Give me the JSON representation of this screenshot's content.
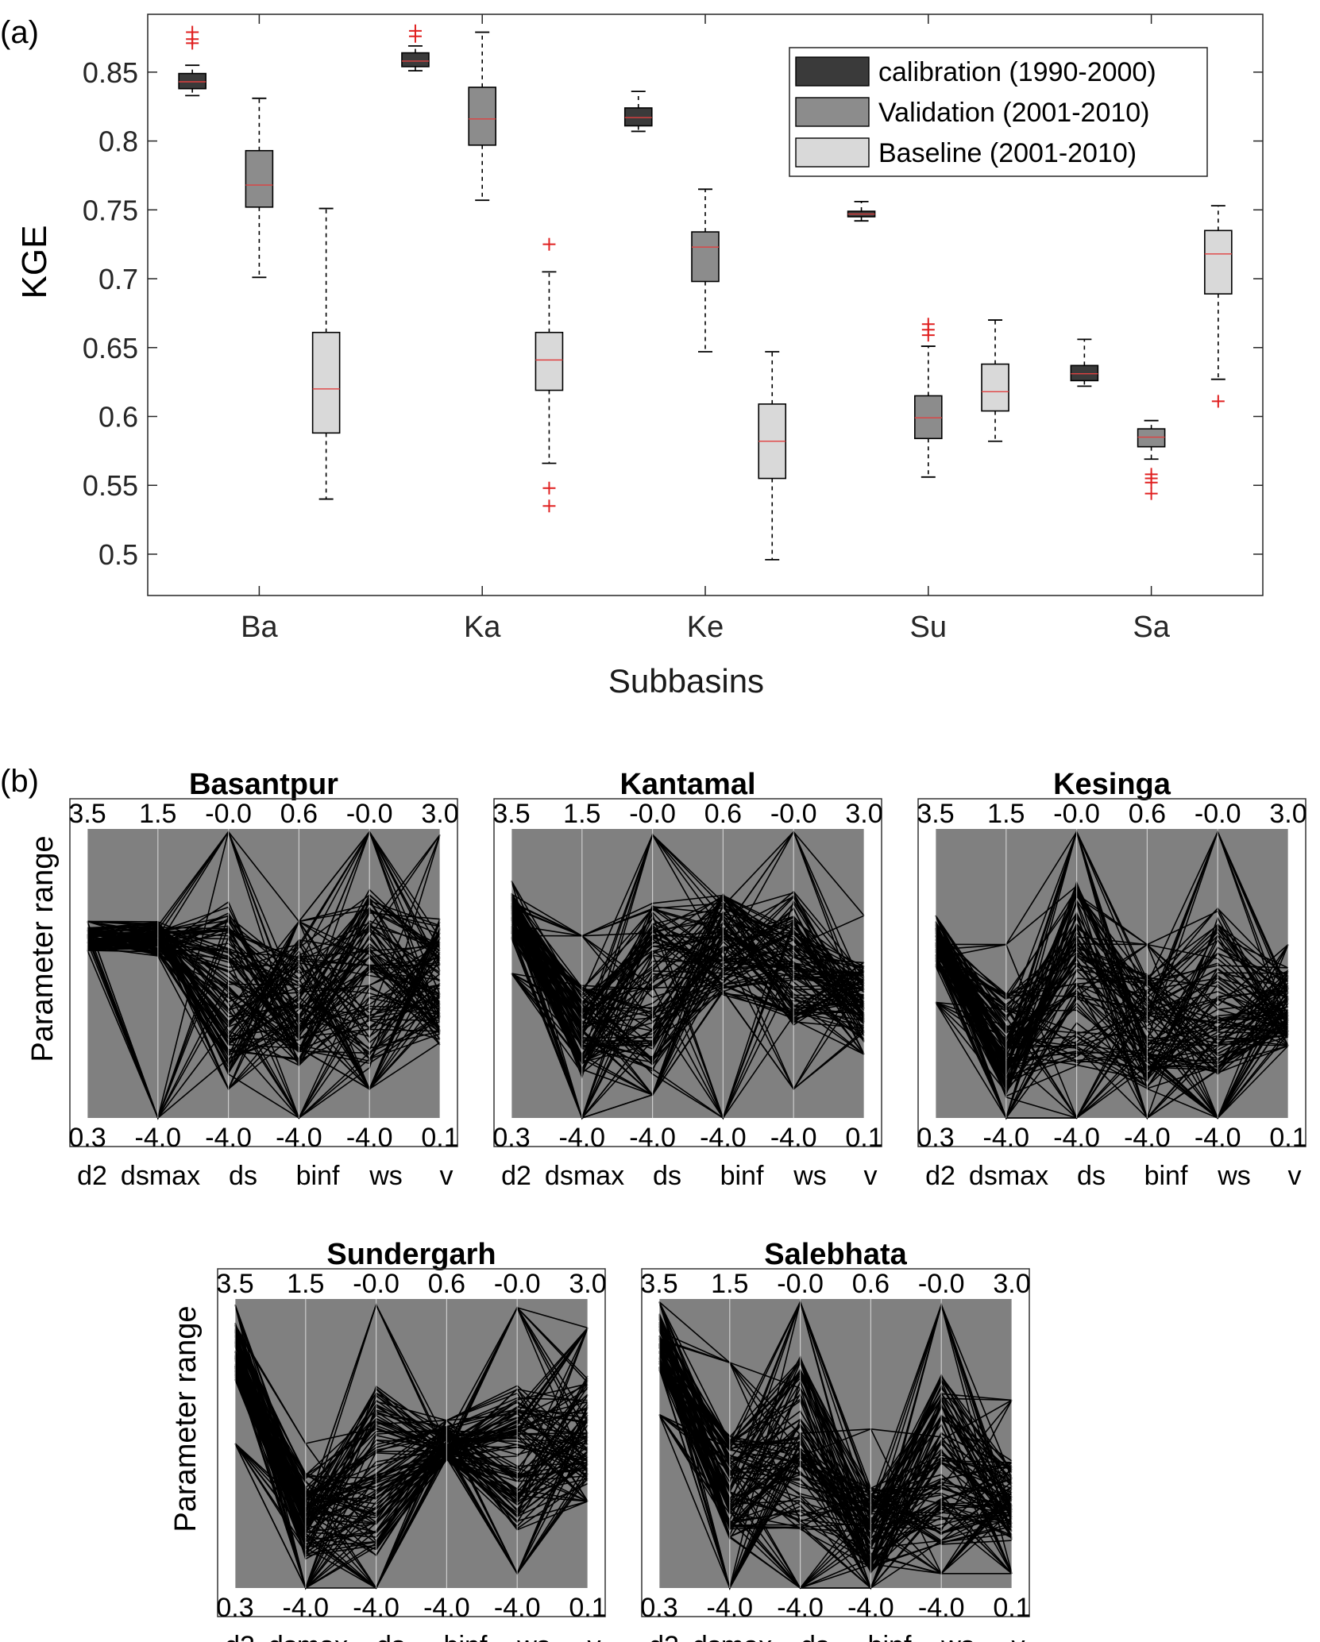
{
  "panel_labels": {
    "a": "(a)",
    "b": "(b)"
  },
  "chart_data": [
    {
      "type": "box",
      "title": "",
      "xlabel": "Subbasins",
      "ylabel": "KGE",
      "ylim": [
        0.47,
        0.892
      ],
      "yticks": [
        0.5,
        0.55,
        0.6,
        0.65,
        0.7,
        0.75,
        0.8,
        0.85
      ],
      "ytick_labels": [
        "0.5",
        "0.55",
        "0.6",
        "0.65",
        "0.7",
        "0.75",
        "0.8",
        "0.85"
      ],
      "categories": [
        "Ba",
        "Ka",
        "Ke",
        "Su",
        "Sa"
      ],
      "legend_position": "top-right",
      "grid": false,
      "series": [
        {
          "name": "calibration (1990-2000)",
          "color": "#3a3a3a",
          "boxes": [
            {
              "whisker_low": 0.833,
              "q1": 0.838,
              "median": 0.843,
              "q3": 0.849,
              "whisker_high": 0.855,
              "outliers": [
                0.871,
                0.874,
                0.879
              ]
            },
            {
              "whisker_low": 0.851,
              "q1": 0.854,
              "median": 0.858,
              "q3": 0.864,
              "whisker_high": 0.869,
              "outliers": [
                0.876,
                0.88
              ]
            },
            {
              "whisker_low": 0.807,
              "q1": 0.811,
              "median": 0.817,
              "q3": 0.824,
              "whisker_high": 0.836,
              "outliers": []
            },
            {
              "whisker_low": 0.742,
              "q1": 0.745,
              "median": 0.747,
              "q3": 0.749,
              "whisker_high": 0.756,
              "outliers": []
            },
            {
              "whisker_low": 0.622,
              "q1": 0.626,
              "median": 0.631,
              "q3": 0.637,
              "whisker_high": 0.656,
              "outliers": []
            }
          ]
        },
        {
          "name": "Validation (2001-2010)",
          "color": "#8c8c8c",
          "boxes": [
            {
              "whisker_low": 0.701,
              "q1": 0.752,
              "median": 0.768,
              "q3": 0.793,
              "whisker_high": 0.831,
              "outliers": []
            },
            {
              "whisker_low": 0.757,
              "q1": 0.797,
              "median": 0.816,
              "q3": 0.839,
              "whisker_high": 0.879,
              "outliers": []
            },
            {
              "whisker_low": 0.647,
              "q1": 0.698,
              "median": 0.723,
              "q3": 0.734,
              "whisker_high": 0.765,
              "outliers": []
            },
            {
              "whisker_low": 0.556,
              "q1": 0.584,
              "median": 0.599,
              "q3": 0.615,
              "whisker_high": 0.651,
              "outliers": [
                0.659,
                0.663,
                0.667
              ]
            },
            {
              "whisker_low": 0.569,
              "q1": 0.578,
              "median": 0.585,
              "q3": 0.591,
              "whisker_high": 0.597,
              "outliers": [
                0.544,
                0.552,
                0.555,
                0.558
              ]
            }
          ]
        },
        {
          "name": "Baseline (2001-2010)",
          "color": "#d9d9d9",
          "boxes": [
            {
              "whisker_low": 0.54,
              "q1": 0.588,
              "median": 0.62,
              "q3": 0.661,
              "whisker_high": 0.751,
              "outliers": []
            },
            {
              "whisker_low": 0.566,
              "q1": 0.619,
              "median": 0.641,
              "q3": 0.661,
              "whisker_high": 0.705,
              "outliers": [
                0.535,
                0.548,
                0.725
              ]
            },
            {
              "whisker_low": 0.496,
              "q1": 0.555,
              "median": 0.582,
              "q3": 0.609,
              "whisker_high": 0.647,
              "outliers": []
            },
            {
              "whisker_low": 0.582,
              "q1": 0.604,
              "median": 0.618,
              "q3": 0.638,
              "whisker_high": 0.67,
              "outliers": []
            },
            {
              "whisker_low": 0.627,
              "q1": 0.689,
              "median": 0.718,
              "q3": 0.735,
              "whisker_high": 0.753,
              "outliers": [
                0.611
              ]
            }
          ]
        }
      ]
    },
    {
      "type": "parallel_coordinates",
      "ylabel": "Parameter range",
      "parameters": [
        "d2",
        "dsmax",
        "ds",
        "binf",
        "ws",
        "v"
      ],
      "top_ticks": [
        "3.5",
        "1.5",
        "-0.0",
        "0.6",
        "-0.0",
        "3.0"
      ],
      "bottom_ticks": [
        "0.3",
        "-4.0",
        "-4.0",
        "-4.0",
        "-4.0",
        "0.1"
      ],
      "band_color": "#808080",
      "line_color": "#000000",
      "panels": [
        {
          "title": "Basantpur",
          "center": [
            0.62,
            0.62,
            0.45,
            0.4,
            0.47,
            0.47
          ],
          "spread": [
            0.04,
            0.06,
            0.3,
            0.22,
            0.32,
            0.22
          ],
          "floor": [
            0.58,
            0.0,
            0.1,
            0.0,
            0.1,
            0.3
          ],
          "peak_hi": [
            0.68,
            0.66,
            0.99,
            0.68,
            0.99,
            0.98
          ]
        },
        {
          "title": "Kantamal",
          "center": [
            0.7,
            0.3,
            0.45,
            0.6,
            0.55,
            0.4
          ],
          "spread": [
            0.08,
            0.16,
            0.3,
            0.18,
            0.24,
            0.14
          ],
          "floor": [
            0.5,
            0.0,
            0.08,
            0.0,
            0.1,
            0.22
          ],
          "peak_hi": [
            0.82,
            0.63,
            0.98,
            0.77,
            0.99,
            0.7
          ]
        },
        {
          "title": "Kesinga",
          "center": [
            0.6,
            0.25,
            0.5,
            0.3,
            0.45,
            0.4
          ],
          "spread": [
            0.08,
            0.18,
            0.32,
            0.2,
            0.3,
            0.12
          ],
          "floor": [
            0.4,
            0.0,
            0.0,
            0.0,
            0.0,
            0.25
          ],
          "peak_hi": [
            0.7,
            0.6,
            0.99,
            0.6,
            0.99,
            0.6
          ]
        },
        {
          "title": "Sundergarh",
          "center": [
            0.82,
            0.25,
            0.4,
            0.5,
            0.45,
            0.55
          ],
          "spread": [
            0.1,
            0.15,
            0.3,
            0.06,
            0.25,
            0.2
          ],
          "floor": [
            0.5,
            0.0,
            0.0,
            0.45,
            0.05,
            0.3
          ],
          "peak_hi": [
            0.98,
            0.5,
            0.98,
            0.58,
            0.97,
            0.9
          ]
        },
        {
          "title": "Salebhata",
          "center": [
            0.85,
            0.35,
            0.5,
            0.2,
            0.45,
            0.3
          ],
          "spread": [
            0.1,
            0.18,
            0.3,
            0.15,
            0.3,
            0.14
          ],
          "floor": [
            0.6,
            0.0,
            0.0,
            0.0,
            0.05,
            0.05
          ],
          "peak_hi": [
            0.99,
            0.78,
            0.99,
            0.55,
            0.98,
            0.65
          ]
        }
      ]
    }
  ]
}
